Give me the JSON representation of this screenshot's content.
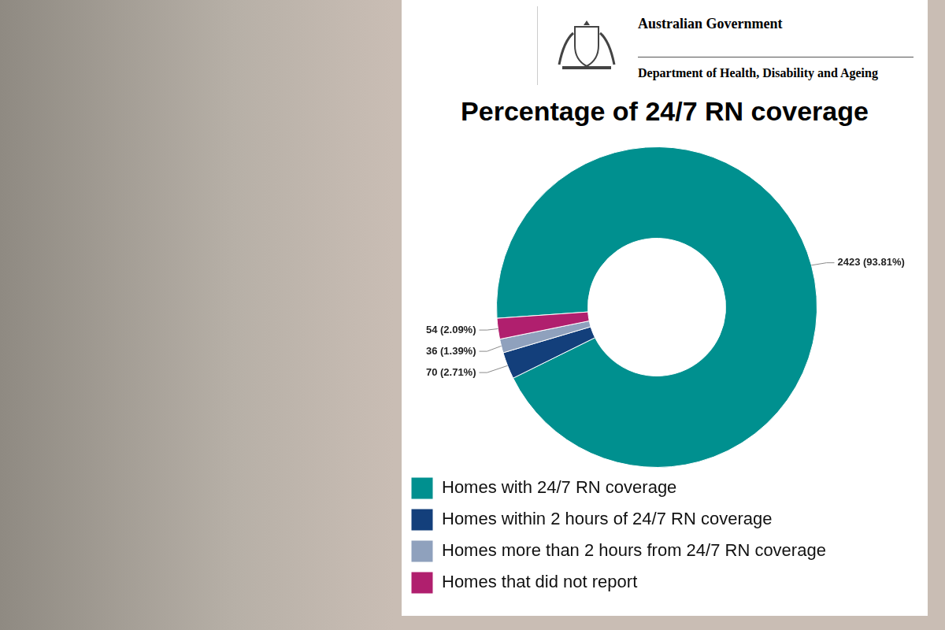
{
  "header": {
    "org": "Australian Government",
    "department": "Department of Health, Disability and Ageing"
  },
  "chart_data": {
    "type": "doughnut",
    "title": "Percentage of 24/7 RN coverage",
    "categories": [
      "Homes with 24/7 RN coverage",
      "Homes within 2 hours of 24/7 RN coverage",
      "Homes more than 2 hours from 24/7 RN coverage",
      "Homes that did not report"
    ],
    "values": [
      2423,
      70,
      36,
      54
    ],
    "value_labels": [
      "2423 (93.81%)",
      "70 (2.71%)",
      "36 (1.39%)",
      "54 (2.09%)"
    ],
    "colors": [
      "#00908f",
      "#133f7b",
      "#8fa1bd",
      "#b01f6e"
    ],
    "data_labels": true,
    "legend": "bottom"
  }
}
